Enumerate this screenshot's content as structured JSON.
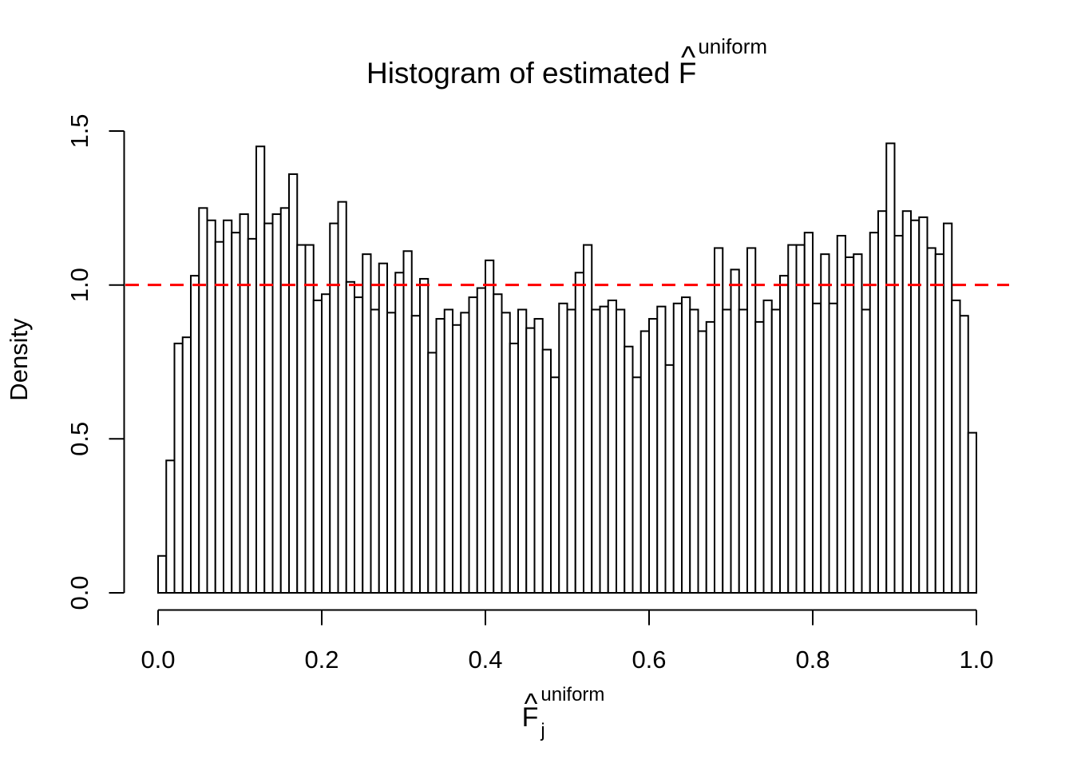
{
  "figure": {
    "title": {
      "prefix": "Histogram of estimated ",
      "symbol": "F",
      "hat": "^",
      "superscript": "uniform"
    },
    "x_axis_label": {
      "symbol": "F",
      "hat": "^",
      "subscript": "j",
      "superscript": "uniform"
    },
    "y_axis_label": "Density"
  },
  "chart_data": {
    "type": "bar",
    "subtype": "histogram",
    "title": "Histogram of estimated F^uniform",
    "xlabel": "F_j^uniform",
    "ylabel": "Density",
    "bin_start": 0,
    "bin_width": 0.01,
    "xlim": [
      0,
      1
    ],
    "ylim": [
      0,
      1.5
    ],
    "x_ticks": [
      0.0,
      0.2,
      0.4,
      0.6,
      0.8,
      1.0
    ],
    "x_tick_labels": [
      "0.0",
      "0.2",
      "0.4",
      "0.6",
      "0.8",
      "1.0"
    ],
    "y_ticks": [
      0.0,
      0.5,
      1.0,
      1.5
    ],
    "y_tick_labels": [
      "0.0",
      "0.5",
      "1.0",
      "1.5"
    ],
    "grid": false,
    "legend": null,
    "bar_fill": "#FFFFFF",
    "bar_stroke": "#000000",
    "axis_color": "#000000",
    "reference_line": {
      "y": 1.0,
      "color": "#FF0000",
      "style": "dashed"
    },
    "values": [
      0.12,
      0.43,
      0.81,
      0.83,
      1.03,
      1.25,
      1.21,
      1.14,
      1.21,
      1.17,
      1.23,
      1.15,
      1.45,
      1.2,
      1.23,
      1.25,
      1.36,
      1.13,
      1.13,
      0.95,
      0.97,
      1.2,
      1.27,
      1.01,
      0.96,
      1.1,
      0.92,
      1.07,
      0.91,
      1.04,
      1.11,
      0.9,
      1.02,
      0.78,
      0.89,
      0.92,
      0.87,
      0.91,
      0.96,
      0.99,
      1.08,
      0.97,
      0.91,
      0.81,
      0.92,
      0.86,
      0.89,
      0.79,
      0.7,
      0.94,
      0.92,
      1.04,
      1.13,
      0.92,
      0.93,
      0.95,
      0.92,
      0.8,
      0.7,
      0.85,
      0.89,
      0.93,
      0.74,
      0.94,
      0.96,
      0.92,
      0.85,
      0.88,
      1.12,
      0.92,
      1.05,
      0.92,
      1.12,
      0.88,
      0.95,
      0.92,
      1.03,
      1.13,
      1.13,
      1.17,
      0.94,
      1.1,
      0.94,
      1.16,
      1.09,
      1.1,
      0.92,
      1.17,
      1.24,
      1.46,
      1.16,
      1.24,
      1.21,
      1.22,
      1.12,
      1.1,
      1.2,
      0.95,
      0.9,
      0.52
    ]
  }
}
